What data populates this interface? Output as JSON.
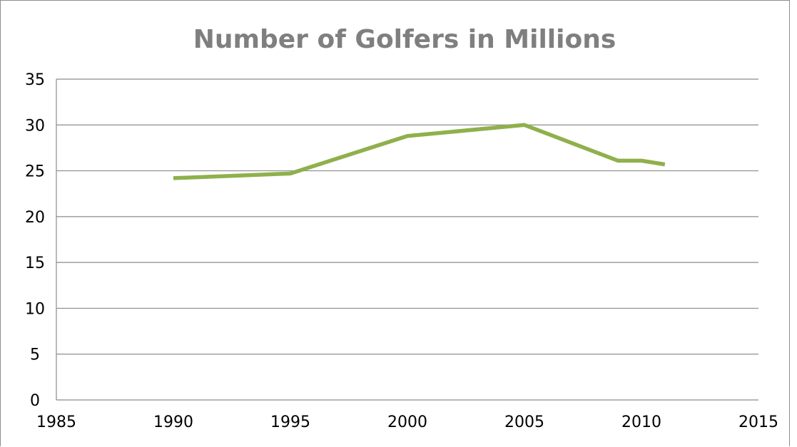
{
  "chart_data": {
    "type": "line",
    "title": "Number of Golfers in Millions",
    "xlabel": "",
    "ylabel": "",
    "xlim": [
      1985,
      2015
    ],
    "ylim": [
      0,
      35
    ],
    "xticks": [
      "1985",
      "1990",
      "1995",
      "2000",
      "2005",
      "2010",
      "2015"
    ],
    "yticks": [
      "0",
      "5",
      "10",
      "15",
      "20",
      "25",
      "30",
      "35"
    ],
    "grid": true,
    "legend": "none",
    "series": [
      {
        "color": "#8fb04c",
        "points": [
          {
            "x": 1990,
            "y": 24.2
          },
          {
            "x": 1995,
            "y": 24.7
          },
          {
            "x": 2000,
            "y": 28.8
          },
          {
            "x": 2005,
            "y": 30.0
          },
          {
            "x": 2009,
            "y": 26.1
          },
          {
            "x": 2010,
            "y": 26.1
          },
          {
            "x": 2011,
            "y": 25.7
          }
        ]
      }
    ]
  }
}
